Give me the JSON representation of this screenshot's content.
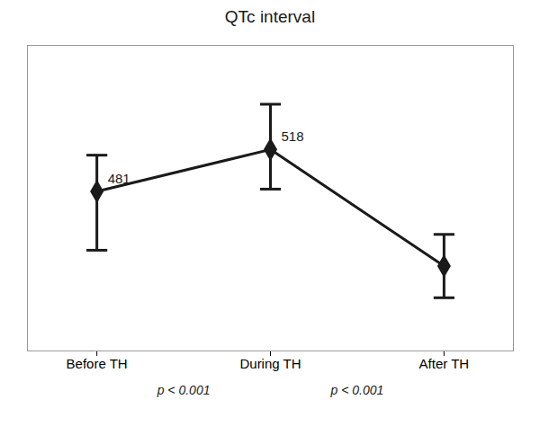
{
  "chart_data": {
    "type": "line",
    "title": "QTc interval",
    "categories": [
      "Before TH",
      "During TH",
      "After TH"
    ],
    "values": [
      481,
      518,
      415
    ],
    "error_upper": [
      32,
      40,
      28
    ],
    "error_lower": [
      52,
      35,
      28
    ],
    "data_labels": true,
    "value_labels": [
      "481",
      "518",
      null
    ],
    "annotations": [
      "p < 0.001",
      "p < 0.001"
    ],
    "ylim": [
      340,
      610
    ],
    "tick_labels": "x",
    "grid": false,
    "color": "#1a1a1a",
    "marker": "diamond"
  }
}
